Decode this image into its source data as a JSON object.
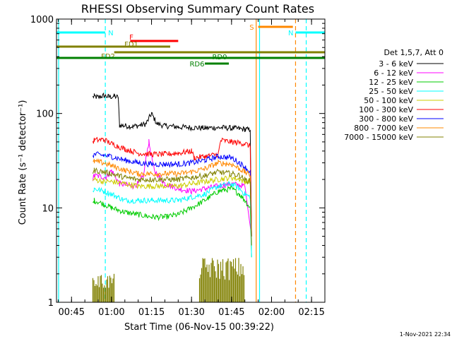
{
  "chart_data": {
    "type": "line",
    "title": "RHESSI Observing Summary Count Rates",
    "xlabel": "Start Time (06-Nov-15 00:39:22)",
    "ylabel": "Count Rate (s⁻¹ detector⁻¹)",
    "yscale": "log",
    "ylim": [
      1,
      1000
    ],
    "xlim": [
      "00:39:22",
      "02:20:00"
    ],
    "x_ticks": [
      "00:45",
      "01:00",
      "01:15",
      "01:30",
      "01:45",
      "02:00",
      "02:15"
    ],
    "y_ticks": [
      "1",
      "10",
      "100",
      "1000"
    ],
    "legend_title": "Det 1,5,7, Att 0",
    "legend_position": "right",
    "timestamp": "1-Nov-2021 22:34",
    "series": [
      {
        "name": "3 - 6 keV",
        "color": "#000000",
        "times": [
          "00:53:00",
          "00:53:30",
          "00:55",
          "00:57",
          "00:59",
          "01:01",
          "01:02:30",
          "01:03:00",
          "01:05",
          "01:08",
          "01:11",
          "01:13",
          "01:15",
          "01:17",
          "01:20",
          "01:25",
          "01:30",
          "01:35",
          "01:40",
          "01:45",
          "01:50",
          "01:52:00",
          "01:52:30"
        ],
        "values": [
          150,
          152,
          148,
          155,
          150,
          152,
          148,
          75,
          74,
          73,
          75,
          78,
          100,
          78,
          74,
          72,
          71,
          70,
          71,
          70,
          68,
          67,
          5
        ]
      },
      {
        "name": "6 - 12 keV",
        "color": "#ff00ff",
        "times": [
          "00:53:00",
          "00:53:30",
          "00:58",
          "01:00",
          "01:03",
          "01:08",
          "01:10",
          "01:12",
          "01:13",
          "01:14",
          "01:16",
          "01:20",
          "01:25",
          "01:30",
          "01:35",
          "01:40",
          "01:45",
          "01:50",
          "01:52:30"
        ],
        "values": [
          20,
          22,
          21,
          25,
          18,
          17,
          18,
          22,
          35,
          50,
          25,
          18,
          16,
          15,
          16,
          17,
          18,
          17,
          5
        ]
      },
      {
        "name": "12 - 25 keV",
        "color": "#00cc00",
        "times": [
          "00:53:00",
          "00:53:30",
          "00:57",
          "01:00",
          "01:05",
          "01:10",
          "01:15",
          "01:20",
          "01:25",
          "01:30",
          "01:35",
          "01:40",
          "01:45",
          "01:48",
          "01:50",
          "01:52",
          "01:52:30"
        ],
        "values": [
          11,
          12,
          11,
          10,
          9,
          8.5,
          8,
          8,
          8.5,
          10,
          12,
          15,
          16,
          14,
          12,
          10,
          3
        ]
      },
      {
        "name": "25 - 50 keV",
        "color": "#00ffff",
        "times": [
          "00:53:00",
          "00:53:30",
          "00:57",
          "01:00",
          "01:05",
          "01:10",
          "01:15",
          "01:20",
          "01:25",
          "01:30",
          "01:35",
          "01:40",
          "01:45",
          "01:48",
          "01:50",
          "01:52",
          "01:52:30"
        ],
        "values": [
          15,
          16,
          15,
          14,
          12,
          12,
          12,
          12,
          12,
          13,
          14,
          17,
          18,
          16,
          14,
          13,
          3
        ]
      },
      {
        "name": "50 - 100 keV",
        "color": "#cccc00",
        "times": [
          "00:53:00",
          "00:53:30",
          "00:57",
          "01:00",
          "01:05",
          "01:10",
          "01:15",
          "01:20",
          "01:25",
          "01:30",
          "01:35",
          "01:40",
          "01:45",
          "01:48",
          "01:50",
          "01:52",
          "01:52:30"
        ],
        "values": [
          19,
          20,
          19,
          19,
          18,
          17,
          17,
          17,
          17,
          18,
          19,
          20,
          21,
          20,
          19,
          19,
          5
        ]
      },
      {
        "name": "100 - 300 keV",
        "color": "#ff0000",
        "times": [
          "00:53:00",
          "00:53:30",
          "00:57",
          "01:00",
          "01:05",
          "01:10",
          "01:15",
          "01:20",
          "01:25",
          "01:30",
          "01:31",
          "01:35",
          "01:40",
          "01:41",
          "01:45",
          "01:50",
          "01:52",
          "01:52:30"
        ],
        "values": [
          50,
          52,
          53,
          48,
          42,
          38,
          37,
          37,
          38,
          40,
          34,
          35,
          37,
          52,
          50,
          48,
          45,
          5
        ]
      },
      {
        "name": "300 - 800 keV",
        "color": "#0000ff",
        "times": [
          "00:53:00",
          "00:53:30",
          "00:57",
          "01:00",
          "01:05",
          "01:10",
          "01:15",
          "01:20",
          "01:25",
          "01:30",
          "01:35",
          "01:40",
          "01:45",
          "01:48",
          "01:50",
          "01:52",
          "01:52:30"
        ],
        "values": [
          36,
          37,
          36,
          35,
          32,
          30,
          29,
          29,
          29,
          30,
          32,
          35,
          34,
          30,
          27,
          24,
          5
        ]
      },
      {
        "name": "800 - 7000 keV",
        "color": "#ff8800",
        "times": [
          "00:53:00",
          "00:53:30",
          "00:57",
          "01:00",
          "01:05",
          "01:10",
          "01:15",
          "01:20",
          "01:25",
          "01:30",
          "01:35",
          "01:40",
          "01:45",
          "01:48",
          "01:50",
          "01:52",
          "01:52:30"
        ],
        "values": [
          30,
          31,
          30,
          28,
          25,
          23,
          23,
          23,
          23,
          24,
          26,
          30,
          29,
          26,
          24,
          22,
          5
        ]
      },
      {
        "name": "7000 - 15000 keV",
        "color": "#808000",
        "times": [
          "00:53:00",
          "00:53:30",
          "00:57",
          "01:00",
          "01:05",
          "01:10",
          "01:15",
          "01:20",
          "01:25",
          "01:30",
          "01:35",
          "01:40",
          "01:45",
          "01:48",
          "01:50",
          "01:52",
          "01:52:30"
        ],
        "values": [
          24,
          25,
          24,
          23,
          21,
          20,
          20,
          20,
          20,
          21,
          22,
          24,
          23,
          22,
          20,
          19,
          4
        ]
      },
      {
        "name": "7000 - 15000 keV (bursts)",
        "color": "#808000",
        "style": "bursts",
        "ranges": [
          [
            "00:53:00",
            "01:01:00"
          ],
          [
            "01:33:00",
            "01:50:00"
          ]
        ],
        "peak_values": [
          2,
          3
        ]
      }
    ],
    "bars": [
      {
        "label": "N",
        "color": "#00ffff",
        "time_start": "00:39:22",
        "time_end": "00:57:40",
        "level": 1
      },
      {
        "label": "N",
        "color": "#00ffff",
        "time_start": "02:09:00",
        "time_end": "02:20:00",
        "level": 1
      },
      {
        "label": "F",
        "color": "#ff0000",
        "time_start": "01:07:00",
        "time_end": "01:25:00",
        "level": 2
      },
      {
        "label": "FD1",
        "color": "#808000",
        "time_start": "00:39:22",
        "time_end": "01:22:00",
        "level": 3
      },
      {
        "label": "FD2",
        "color": "#808000",
        "time_start": "01:01:00",
        "time_end": "02:20:00",
        "level": 4
      },
      {
        "label": "RD0",
        "color": "#008000",
        "time_start": "00:39:22",
        "time_end": "02:20:00",
        "level": 5
      },
      {
        "label": "RD6",
        "color": "#008000",
        "time_start": "01:35:00",
        "time_end": "01:44:00",
        "level": 6
      },
      {
        "label": "S",
        "color": "#ff8800",
        "time_start": "01:55:00",
        "time_end": "02:08:00",
        "level": 0
      }
    ],
    "vlines": [
      {
        "time": "00:40:10",
        "color": "#00ffff",
        "style": "solid"
      },
      {
        "time": "00:57:40",
        "color": "#00ffff",
        "style": "dashed"
      },
      {
        "time": "01:54:15",
        "color": "#ff8800",
        "style": "solid"
      },
      {
        "time": "01:55:30",
        "color": "#00ffff",
        "style": "solid"
      },
      {
        "time": "02:09:00",
        "color": "#ff8800",
        "style": "dashed"
      },
      {
        "time": "02:13:00",
        "color": "#00ffff",
        "style": "dashed"
      }
    ]
  }
}
